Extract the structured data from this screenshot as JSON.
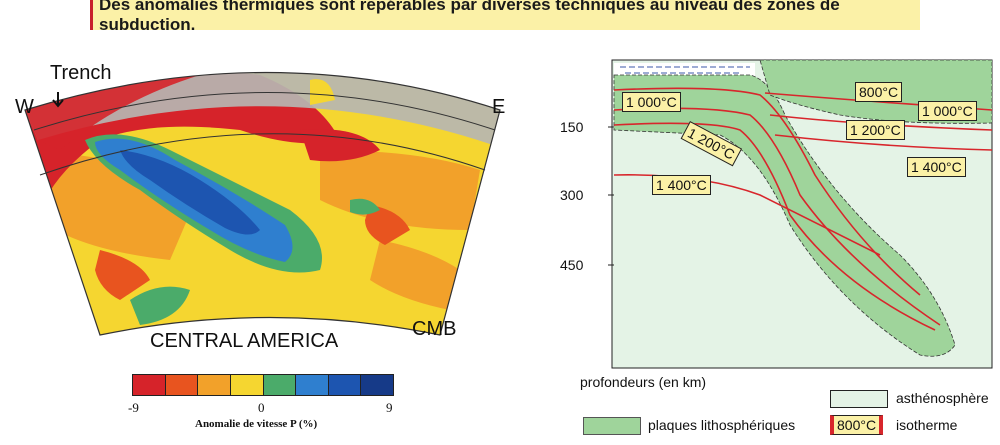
{
  "header": {
    "banner": "Des anomalies thermiques sont repérables par diverses techniques au niveau des zones de subduction."
  },
  "tomography": {
    "labels": {
      "trench": "Trench",
      "west": "W",
      "east": "E",
      "region": "CENTRAL AMERICA",
      "cmb": "CMB"
    },
    "colorbar": {
      "ticks": [
        "-9",
        "0",
        "9"
      ],
      "title": "Anomalie de vitesse P (%)",
      "colors": [
        "#d6232a",
        "#e8541f",
        "#f2a12a",
        "#f5d630",
        "#4bab6a",
        "#2f7fcf",
        "#1d55b0",
        "#163a88"
      ]
    }
  },
  "cross_section": {
    "depth_ticks": [
      "150",
      "300",
      "450"
    ],
    "axis_label": "profondeurs (en km)",
    "isotherms": {
      "left_1000": "1 000°C",
      "top_800": "800°C",
      "right_1000": "1 000°C",
      "slab_1200": "1 200°C",
      "right_1200": "1 200°C",
      "right_1400": "1 400°C",
      "left_1400": "1 400°C"
    },
    "legend": {
      "asthenosphere": "asthénosphère",
      "plates": "plaques lithosphériques",
      "isotherm_sample": "800°C",
      "isotherm": "isotherme"
    },
    "colors": {
      "asthenosphere": "#e4f3e6",
      "plate": "#9fd49b",
      "isotherm": "#d8262c"
    }
  }
}
